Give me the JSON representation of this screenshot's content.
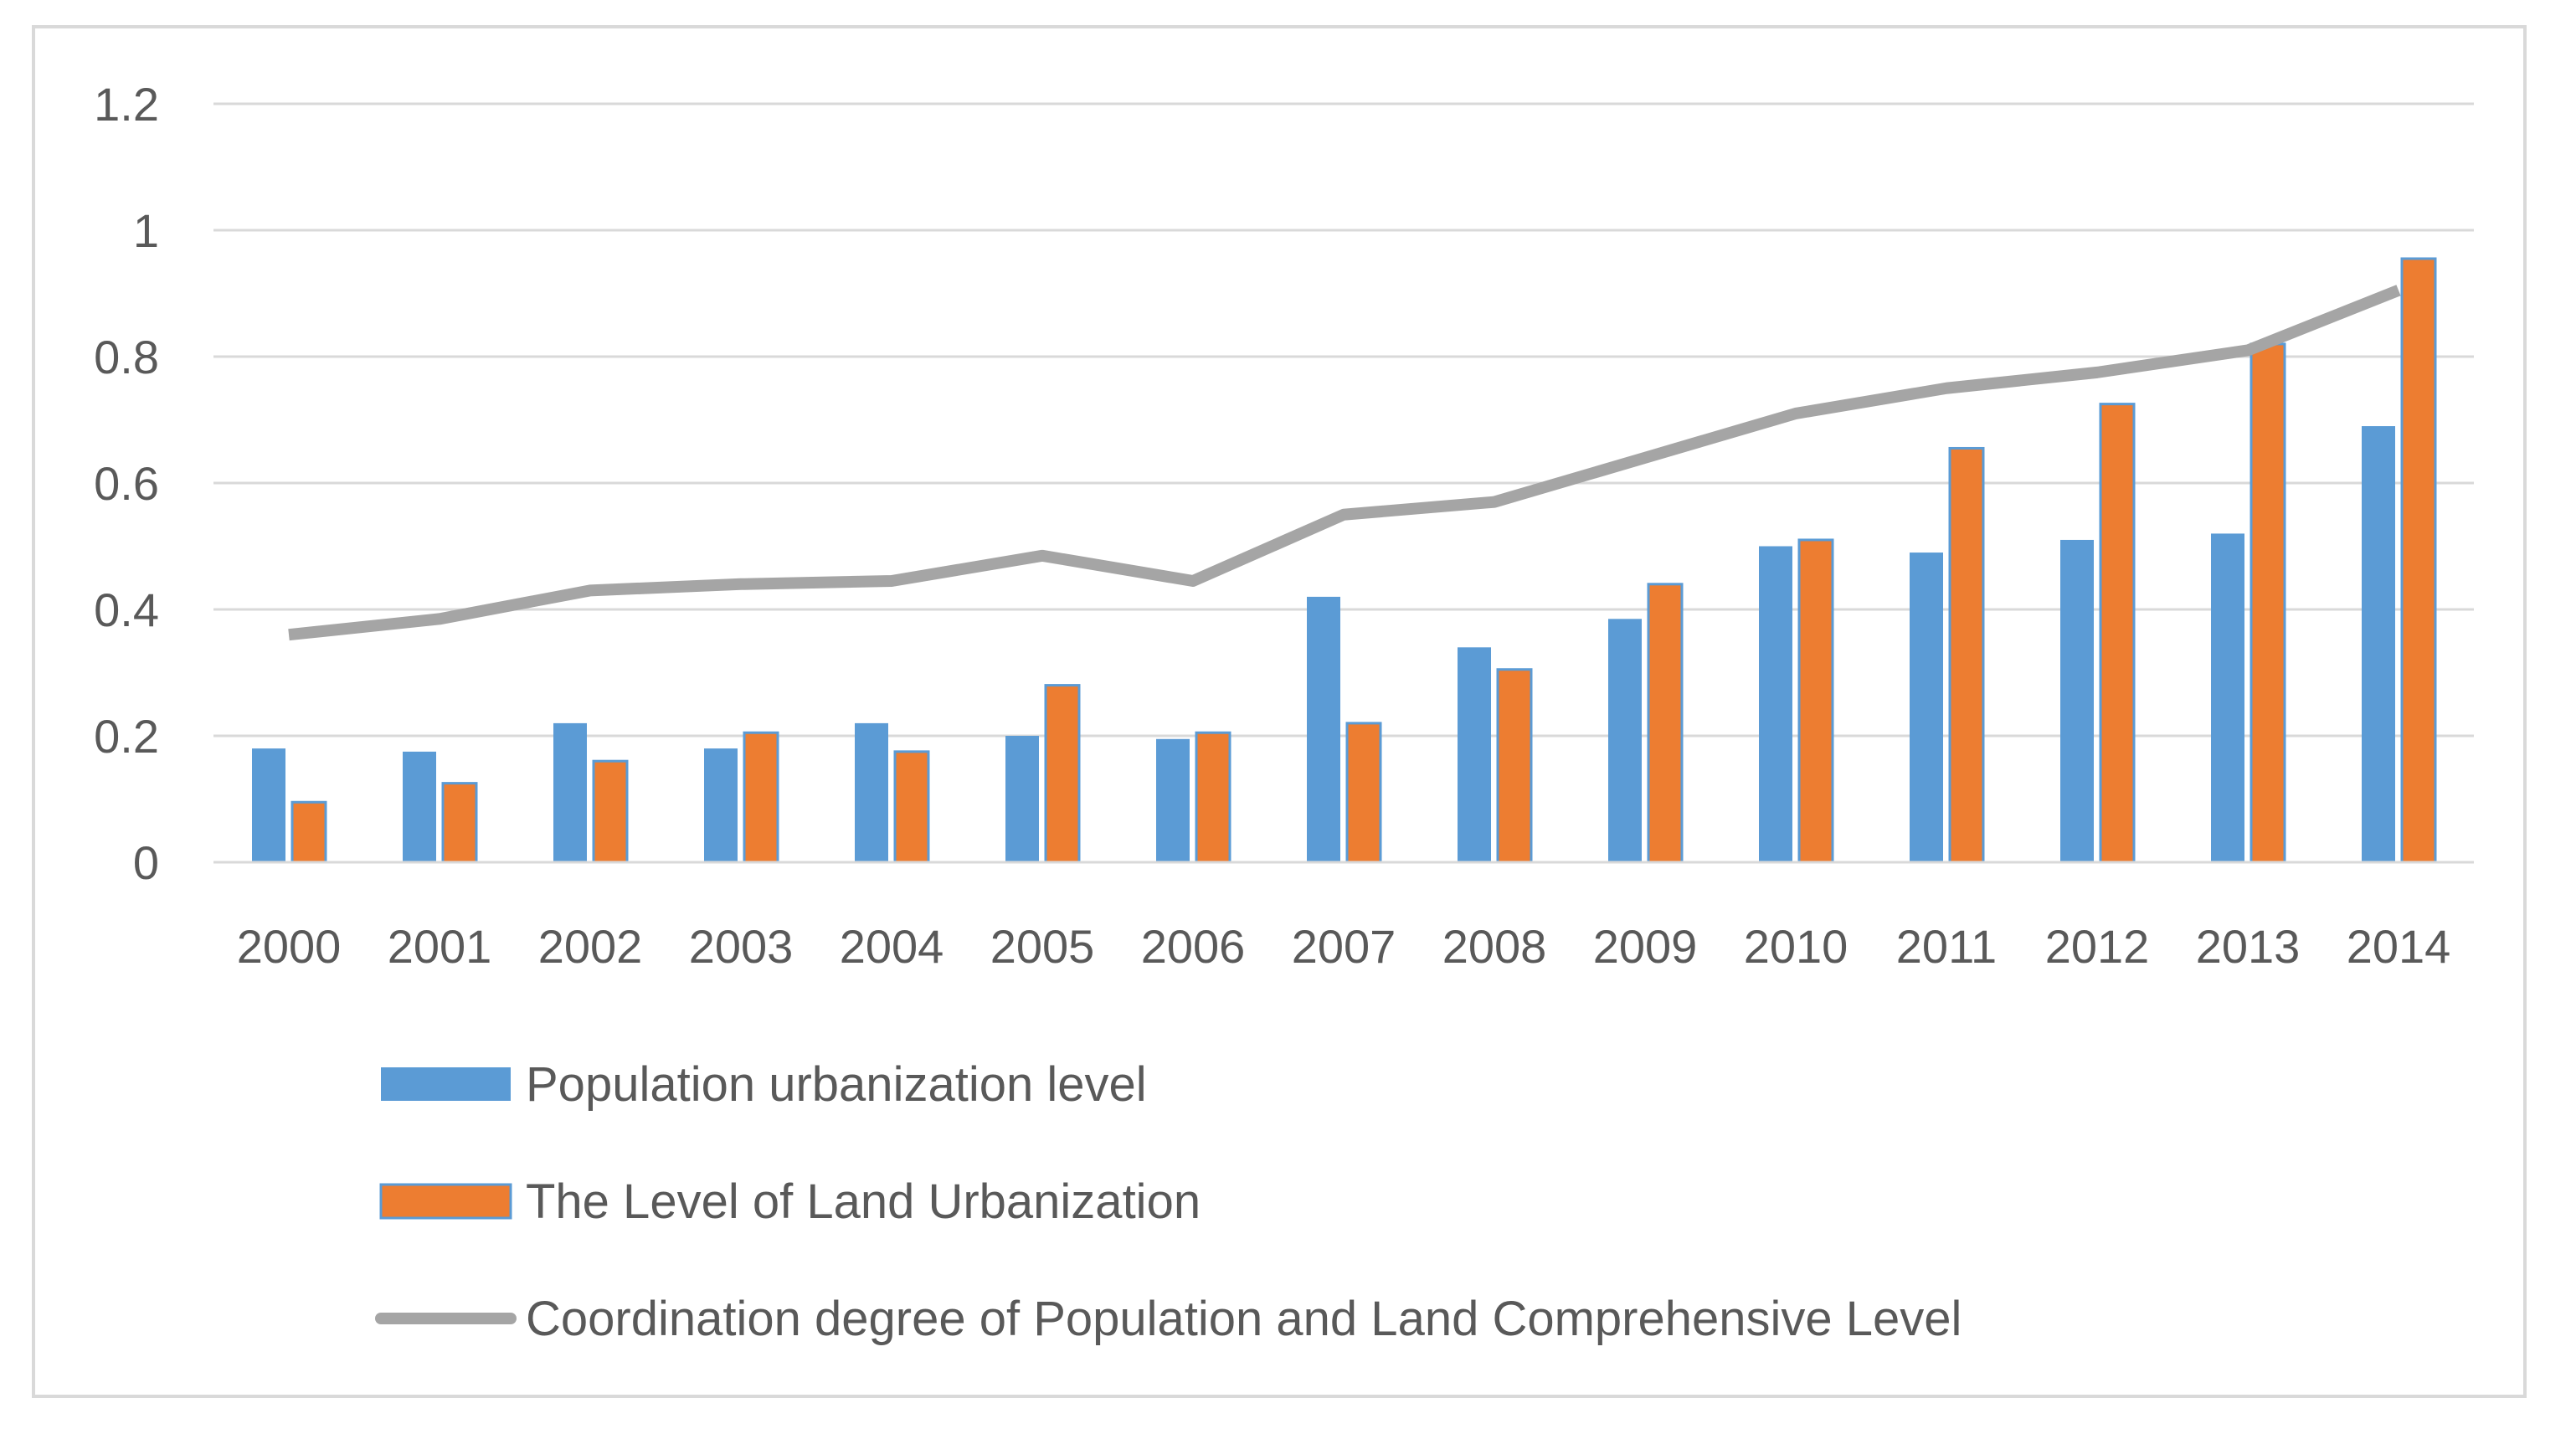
{
  "chart_data": {
    "type": "bar",
    "title": "",
    "xlabel": "",
    "ylabel": "",
    "ylim": [
      0,
      1.2
    ],
    "yticks": [
      "0",
      "0.2",
      "0.4",
      "0.6",
      "0.8",
      "1",
      "1.2"
    ],
    "ytick_values": [
      0,
      0.2,
      0.4,
      0.6,
      0.8,
      1.0,
      1.2
    ],
    "grid": true,
    "legend_position": "bottom",
    "categories": [
      "2000",
      "2001",
      "2002",
      "2003",
      "2004",
      "2005",
      "2006",
      "2007",
      "2008",
      "2009",
      "2010",
      "2011",
      "2012",
      "2013",
      "2014"
    ],
    "series": [
      {
        "name": "Population urbanization level",
        "kind": "bar",
        "color": "#5b9bd5",
        "values": [
          0.18,
          0.175,
          0.22,
          0.18,
          0.22,
          0.2,
          0.195,
          0.42,
          0.34,
          0.385,
          0.5,
          0.49,
          0.51,
          0.52,
          0.69
        ]
      },
      {
        "name": "The Level of Land Urbanization",
        "kind": "bar",
        "color": "#ed7d31",
        "values": [
          0.095,
          0.125,
          0.16,
          0.205,
          0.175,
          0.28,
          0.205,
          0.22,
          0.305,
          0.44,
          0.51,
          0.655,
          0.725,
          0.82,
          0.955
        ]
      },
      {
        "name": "Coordination degree of Population and Land Comprehensive Level",
        "kind": "line",
        "color": "#a5a5a5",
        "values": [
          0.36,
          0.385,
          0.43,
          0.44,
          0.445,
          0.485,
          0.445,
          0.55,
          0.57,
          0.64,
          0.71,
          0.75,
          0.775,
          0.81,
          0.905
        ]
      }
    ]
  }
}
